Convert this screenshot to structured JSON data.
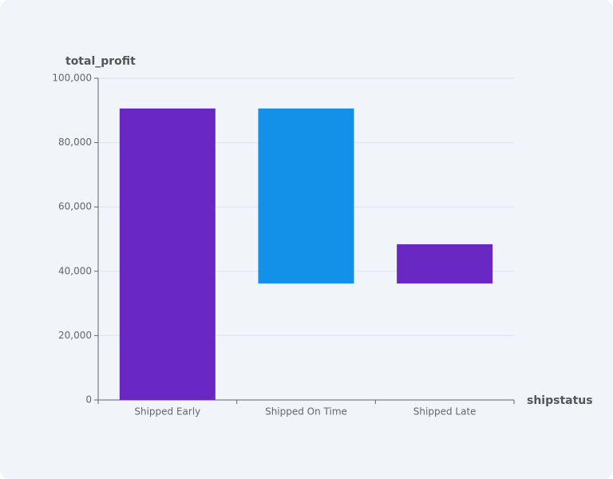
{
  "chart_data": {
    "type": "waterfall",
    "x_label": "shipstatus",
    "y_label": "total_profit",
    "categories": [
      "Shipped Early",
      "Shipped On Time",
      "Shipped Late"
    ],
    "values": [
      90600,
      -54400,
      12200
    ],
    "colors": [
      "#6927c4",
      "#1390e8",
      "#6927c4"
    ],
    "ylim": [
      0,
      100000
    ],
    "yticks": [
      0,
      {
        "value": 20000,
        "label": "20,000"
      },
      {
        "value": 40000,
        "label": "40,000"
      },
      {
        "value": 60000,
        "label": "60,000"
      },
      {
        "value": 80000,
        "label": "80,000"
      },
      {
        "value": 100000,
        "label": "100,000"
      }
    ],
    "grid": true
  }
}
